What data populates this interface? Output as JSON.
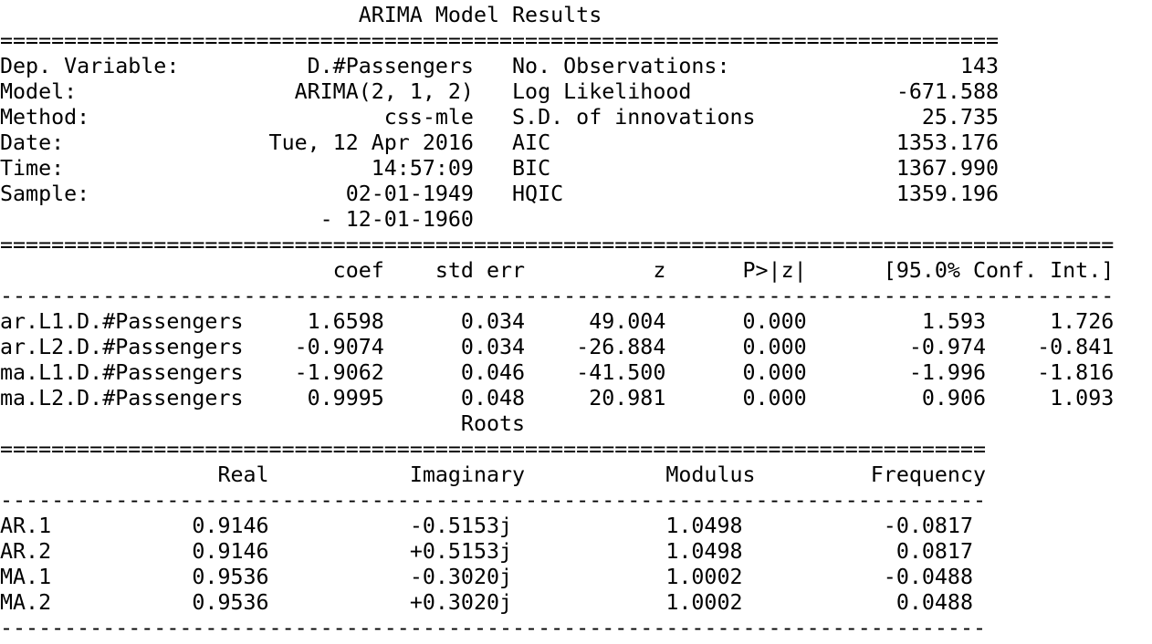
{
  "lines": [
    "                            ARIMA Model Results                              ",
    "==============================================================================",
    "Dep. Variable:          D.#Passengers   No. Observations:                  143",
    "Model:                 ARIMA(2, 1, 2)   Log Likelihood                -671.588",
    "Method:                       css-mle   S.D. of innovations             25.735",
    "Date:                Tue, 12 Apr 2016   AIC                           1353.176",
    "Time:                        14:57:09   BIC                           1367.990",
    "Sample:                    02-01-1949   HQIC                          1359.196",
    "                         - 12-01-1960                                         ",
    "=======================================================================================",
    "                          coef    std err          z      P>|z|      [95.0% Conf. Int.]",
    "---------------------------------------------------------------------------------------",
    "ar.L1.D.#Passengers     1.6598      0.034     49.004      0.000         1.593     1.726",
    "ar.L2.D.#Passengers    -0.9074      0.034    -26.884      0.000        -0.974    -0.841",
    "ma.L1.D.#Passengers    -1.9062      0.046    -41.500      0.000        -1.996    -1.816",
    "ma.L2.D.#Passengers     0.9995      0.048     20.981      0.000         0.906     1.093",
    "                                    Roots                                    ",
    "=============================================================================",
    "                 Real           Imaginary           Modulus         Frequency",
    "-----------------------------------------------------------------------------",
    "AR.1           0.9146           -0.5153j            1.0498           -0.0817",
    "AR.2           0.9146           +0.5153j            1.0498            0.0817",
    "MA.1           0.9536           -0.3020j            1.0002           -0.0488",
    "MA.2           0.9536           +0.3020j            1.0002            0.0488",
    "-----------------------------------------------------------------------------"
  ]
}
